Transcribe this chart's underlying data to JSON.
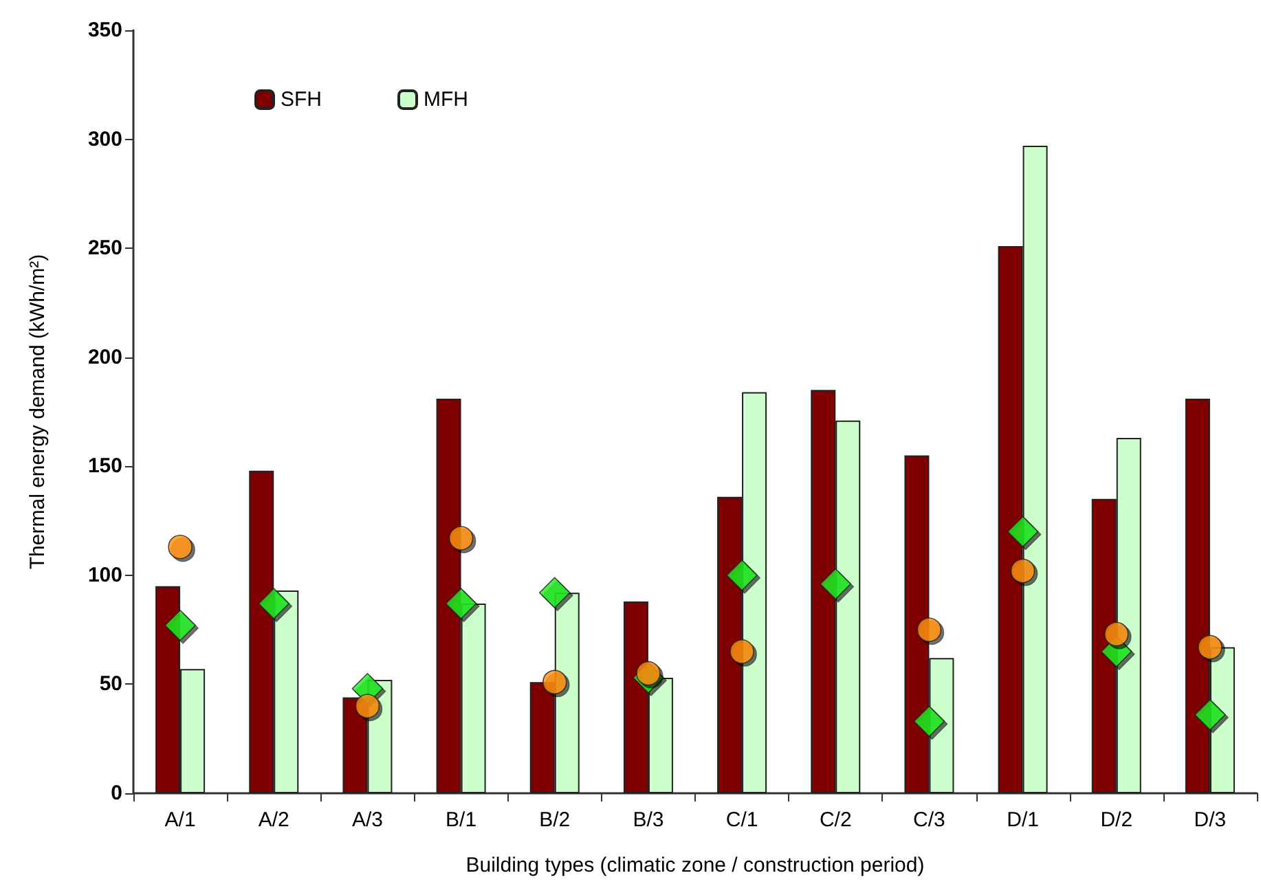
{
  "chart_data": {
    "type": "bar",
    "xlabel": "Building types (climatic zone / construction period)",
    "ylabel": "Thermal energy demand (kWh/m²)",
    "categories": [
      "A/1",
      "A/2",
      "A/3",
      "B/1",
      "B/2",
      "B/3",
      "C/1",
      "C/2",
      "C/3",
      "D/1",
      "D/2",
      "D/3"
    ],
    "series": [
      {
        "name": "SFH",
        "color": "#7f0000",
        "values": [
          95,
          148,
          44,
          181,
          51,
          88,
          136,
          185,
          155,
          251,
          135,
          181
        ]
      },
      {
        "name": "MFH",
        "color": "#ccffcc",
        "values": [
          57,
          93,
          52,
          87,
          92,
          53,
          184,
          171,
          62,
          297,
          163,
          67
        ]
      },
      {
        "type": "scatter",
        "marker": "circle",
        "color": "#ff9010",
        "x": [
          "A/1",
          "A/2",
          "A/3",
          "B/1",
          "B/2",
          "B/3",
          "C/1",
          "C/2",
          "C/3",
          "D/1",
          "D/2",
          "D/3"
        ],
        "values": [
          113,
          null,
          40,
          117,
          51,
          55,
          65,
          null,
          75,
          102,
          73,
          67
        ]
      },
      {
        "type": "scatter",
        "marker": "diamond",
        "color": "#22ee22",
        "x": [
          "A/1",
          "A/2",
          "A/3",
          "B/1",
          "B/2",
          "B/3",
          "C/1",
          "C/2",
          "C/3",
          "D/1",
          "D/2",
          "D/3"
        ],
        "values": [
          77,
          87,
          48,
          87,
          92,
          53,
          100,
          96,
          33,
          120,
          65,
          36
        ]
      }
    ],
    "ylim": [
      0,
      350
    ],
    "yticks": [
      0,
      50,
      100,
      150,
      200,
      250,
      300,
      350
    ],
    "grid": false,
    "legend": "top left"
  }
}
